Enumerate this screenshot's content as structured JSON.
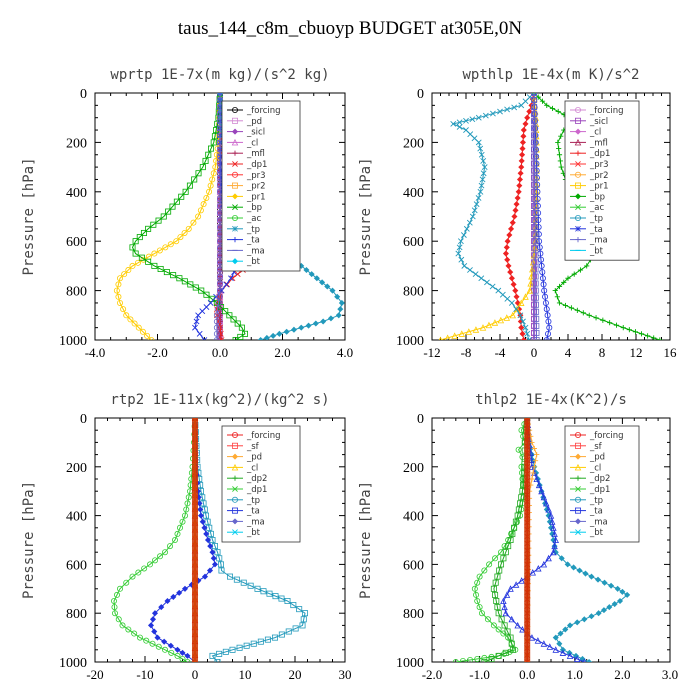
{
  "title": "taus_144_c8m_cbuoyp  BUDGET at305E,0N",
  "colors": {
    "forcing": "#000000",
    "pd": "#d38ad3",
    "sicl": "#9944bb",
    "cl": "#cc66cc",
    "mfl": "#aa2255",
    "dp1": "#ee2222",
    "pr3": "#ff3333",
    "pr2": "#ffaa33",
    "pr1": "#ffcc00",
    "bp": "#00aa00",
    "ac": "#33cc33",
    "tp": "#2299bb",
    "ta": "#2233dd",
    "ma": "#6666cc",
    "bt": "#00ccee",
    "sf": "#ff4444",
    "dp2": "#22aa22"
  },
  "chart_data": [
    {
      "type": "line",
      "title": "wprtp  1E-7x(m kg)/(s^2 kg)",
      "ylabel": "Pressure [hPa]",
      "xlim": [
        -4,
        4
      ],
      "ylim": [
        1000,
        0
      ],
      "xticks": [
        "-4.0",
        "-2.0",
        "0.0",
        "2.0",
        "4.0"
      ],
      "yticks": [
        "0",
        "200",
        "400",
        "600",
        "800",
        "1000"
      ],
      "legend": [
        "_forcing",
        "_pd",
        "_sicl",
        "_cl",
        "_mfl",
        "_dp1",
        "_pr3",
        "_pr2",
        "_pr1",
        "_bp",
        "_ac",
        "_tp",
        "_ta",
        "_ma",
        "_bt"
      ],
      "series": [
        {
          "name": "_forcing",
          "color": "forcing",
          "p": [
            0,
            100,
            200,
            300,
            400,
            500,
            600,
            700,
            800,
            900,
            1000
          ],
          "x": [
            0,
            0,
            0,
            0,
            0,
            0,
            0,
            0,
            0,
            0,
            0
          ]
        },
        {
          "name": "_pd",
          "color": "pd",
          "p": [
            0,
            200,
            400,
            600,
            800,
            900,
            1000
          ],
          "x": [
            0,
            0,
            0,
            0,
            0,
            0,
            0
          ]
        },
        {
          "name": "_sicl",
          "color": "sicl",
          "p": [
            0,
            200,
            400,
            600,
            800,
            900,
            1000
          ],
          "x": [
            0,
            0,
            0,
            0,
            0,
            0,
            0
          ]
        },
        {
          "name": "_cl",
          "color": "cl",
          "p": [
            0,
            200,
            400,
            600,
            800,
            900,
            1000
          ],
          "x": [
            0,
            0,
            0,
            0,
            0,
            0,
            0
          ]
        },
        {
          "name": "_mfl",
          "color": "mfl",
          "p": [
            0,
            200,
            400,
            600,
            800,
            900,
            1000
          ],
          "x": [
            0,
            0,
            0,
            0,
            0,
            0,
            0
          ]
        },
        {
          "name": "_dp1",
          "color": "dp1",
          "p": [
            0,
            100,
            200,
            300,
            400,
            500,
            550,
            600,
            650,
            700,
            750,
            800,
            850,
            900,
            950,
            1000
          ],
          "x": [
            0,
            0.02,
            0.05,
            0.15,
            0.3,
            0.55,
            0.75,
            0.95,
            1.1,
            0.9,
            0.4,
            0.05,
            -0.1,
            -0.1,
            0,
            0.05
          ]
        },
        {
          "name": "_pr1",
          "color": "pr1",
          "p": [
            0,
            100,
            200,
            300,
            400,
            500,
            550,
            600,
            650,
            700,
            750,
            800,
            850,
            900,
            950,
            1000
          ],
          "x": [
            0,
            -0.02,
            -0.05,
            -0.15,
            -0.35,
            -0.7,
            -1.0,
            -1.4,
            -2.1,
            -2.8,
            -3.2,
            -3.3,
            -3.2,
            -3.0,
            -2.6,
            -2.2
          ]
        },
        {
          "name": "_bp",
          "color": "bp",
          "p": [
            0,
            100,
            200,
            300,
            400,
            500,
            550,
            600,
            625,
            650,
            700,
            750,
            800,
            850,
            900,
            950,
            975,
            1000
          ],
          "x": [
            0,
            -0.05,
            -0.2,
            -0.55,
            -1.1,
            -1.8,
            -2.3,
            -2.7,
            -2.8,
            -2.7,
            -2.1,
            -1.3,
            -0.6,
            -0.1,
            0.3,
            0.7,
            0.8,
            0.5
          ]
        },
        {
          "name": "_tp",
          "color": "tp",
          "p": [
            0,
            100,
            200,
            300,
            400,
            500,
            550,
            600,
            650,
            700,
            750,
            800,
            850,
            900,
            925,
            950,
            975,
            1000
          ],
          "x": [
            0,
            0.02,
            0.1,
            0.25,
            0.5,
            0.9,
            1.2,
            1.6,
            2.1,
            2.6,
            3.1,
            3.6,
            3.9,
            3.8,
            3.3,
            2.6,
            1.9,
            1.3
          ]
        },
        {
          "name": "_ta",
          "color": "ta",
          "p": [
            0,
            200,
            400,
            500,
            550,
            600,
            650,
            700,
            750,
            800,
            850,
            900,
            950,
            1000
          ],
          "x": [
            0,
            0,
            0.05,
            0.15,
            0.3,
            0.45,
            0.6,
            0.55,
            0.35,
            0.05,
            -0.3,
            -0.7,
            -0.8,
            -0.5
          ]
        },
        {
          "name": "_ma",
          "color": "ma",
          "p": [
            0,
            400,
            800,
            900,
            1000
          ],
          "x": [
            0,
            0,
            0,
            -0.1,
            -0.1
          ]
        }
      ]
    },
    {
      "type": "line",
      "title": "wpthlp  1E-4x(m K)/s^2",
      "ylabel": "Pressure [hPa]",
      "xlim": [
        -12,
        16
      ],
      "ylim": [
        1000,
        0
      ],
      "xticks": [
        "-12",
        "-8",
        "-4",
        "0",
        "4",
        "8",
        "12",
        "16"
      ],
      "yticks": [
        "0",
        "200",
        "400",
        "600",
        "800",
        "1000"
      ],
      "legend": [
        "_forcing",
        "_sicl",
        "_cl",
        "_mfl",
        "_dp1",
        "_pr3",
        "_pr2",
        "_pr1",
        "_bp",
        "_ac",
        "_tp",
        "_ta",
        "_ma",
        "_bt"
      ],
      "series": [
        {
          "name": "_forcing",
          "color": "pd",
          "p": [
            0,
            200,
            400,
            600,
            800,
            1000
          ],
          "x": [
            0,
            0,
            0,
            0,
            0,
            0
          ]
        },
        {
          "name": "_sicl",
          "color": "sicl",
          "p": [
            0,
            200,
            400,
            600,
            800,
            1000
          ],
          "x": [
            0,
            0,
            0,
            0,
            0,
            0
          ]
        },
        {
          "name": "_dp1",
          "color": "dp1",
          "p": [
            0,
            50,
            100,
            150,
            200,
            300,
            400,
            500,
            600,
            650,
            700,
            800,
            900,
            950,
            1000
          ],
          "x": [
            0,
            -0.3,
            -0.8,
            -1.2,
            -1.3,
            -1.5,
            -1.8,
            -2.3,
            -3.1,
            -3.3,
            -3.0,
            -2.2,
            -1.6,
            -1.5,
            -1.2
          ]
        },
        {
          "name": "_pr1",
          "color": "pr1",
          "p": [
            0,
            100,
            200,
            400,
            600,
            800,
            900,
            950,
            1000
          ],
          "x": [
            0,
            0.2,
            0.3,
            0.3,
            0.2,
            -0.5,
            -2.5,
            -6,
            -11
          ]
        },
        {
          "name": "_bp",
          "color": "bp",
          "p": [
            0,
            50,
            100,
            125,
            150,
            200,
            300,
            400,
            500,
            550,
            600,
            650,
            700,
            750,
            800,
            850,
            900,
            950,
            1000
          ],
          "x": [
            0,
            1.5,
            4.2,
            4.5,
            3.5,
            2.8,
            3.2,
            4.2,
            5.6,
            6.3,
            6.9,
            7.1,
            6.2,
            4.0,
            2.5,
            3.0,
            6.5,
            10.5,
            14.8
          ]
        },
        {
          "name": "_tp",
          "color": "tp",
          "p": [
            0,
            50,
            100,
            125,
            150,
            200,
            300,
            400,
            500,
            550,
            600,
            650,
            700,
            750,
            800,
            850,
            900,
            950,
            1000
          ],
          "x": [
            0,
            -1.5,
            -6.5,
            -9.5,
            -8.0,
            -6.5,
            -5.8,
            -6.3,
            -7.2,
            -7.9,
            -8.6,
            -8.9,
            -8.2,
            -6.2,
            -4.2,
            -2.6,
            -1.6,
            -1.0,
            -0.6
          ]
        },
        {
          "name": "_ta",
          "color": "ta",
          "p": [
            0,
            200,
            400,
            600,
            700,
            800,
            900,
            950,
            1000
          ],
          "x": [
            0,
            0.2,
            0.4,
            0.6,
            0.9,
            1.2,
            1.6,
            1.8,
            1.5
          ]
        },
        {
          "name": "_ma",
          "color": "ma",
          "p": [
            0,
            400,
            800,
            1000
          ],
          "x": [
            0,
            0.1,
            0.2,
            0.3
          ]
        }
      ]
    },
    {
      "type": "line",
      "title": "rtp2  1E-11x(kg^2)/(kg^2 s)",
      "ylabel": "Pressure [hPa]",
      "xlim": [
        -20,
        30
      ],
      "ylim": [
        1000,
        0
      ],
      "xticks": [
        "-20",
        "-10",
        "0",
        "10",
        "20",
        "30"
      ],
      "yticks": [
        "0",
        "200",
        "400",
        "600",
        "800",
        "1000"
      ],
      "legend": [
        "_forcing",
        "_sf",
        "_pd",
        "_cl",
        "_dp2",
        "_dp1",
        "_tp",
        "_ta",
        "_ma",
        "_bt"
      ],
      "series": [
        {
          "name": "_dp1",
          "color": "ac",
          "p": [
            0,
            100,
            200,
            300,
            400,
            500,
            550,
            600,
            650,
            700,
            750,
            800,
            850,
            900,
            950,
            975,
            1000
          ],
          "x": [
            0,
            -0.2,
            -0.5,
            -1.0,
            -2.0,
            -4.0,
            -6.0,
            -9.0,
            -12.5,
            -15.0,
            -16.2,
            -16.0,
            -14.5,
            -11.0,
            -6.0,
            -3.5,
            -1.5
          ]
        },
        {
          "name": "_tp",
          "color": "tp",
          "p": [
            0,
            200,
            300,
            400,
            500,
            550,
            600,
            625,
            650,
            700,
            750,
            800,
            850,
            900,
            950,
            975,
            1000
          ],
          "x": [
            0,
            0.5,
            1.2,
            2.2,
            3.5,
            4.5,
            5.2,
            5.3,
            7.0,
            12.5,
            18.5,
            22.0,
            21.5,
            16.0,
            7.5,
            3.5,
            4.5
          ]
        },
        {
          "name": "_ta",
          "color": "ta",
          "p": [
            0,
            200,
            300,
            400,
            500,
            550,
            600,
            650,
            700,
            750,
            800,
            850,
            900,
            950,
            975,
            1000
          ],
          "x": [
            0,
            0.2,
            0.6,
            1.2,
            2.6,
            3.5,
            4.0,
            2.0,
            -2.0,
            -5.5,
            -8.0,
            -8.8,
            -7.5,
            -3.5,
            -1.5,
            0
          ]
        },
        {
          "name": "_forcing",
          "color": "dp1",
          "p": [
            0,
            200,
            400,
            600,
            800,
            1000
          ],
          "x": [
            0,
            0,
            0,
            0,
            0,
            0
          ]
        },
        {
          "name": "_pd",
          "color": "pr2",
          "p": [
            0,
            200,
            400,
            600,
            800,
            1000
          ],
          "x": [
            0,
            0,
            0,
            0,
            0,
            0
          ]
        }
      ]
    },
    {
      "type": "line",
      "title": "thlp2  1E-4x(K^2)/s",
      "ylabel": "Pressure [hPa]",
      "xlim": [
        -2,
        3
      ],
      "ylim": [
        1000,
        0
      ],
      "xticks": [
        "-2.0",
        "-1.0",
        "0.0",
        "1.0",
        "2.0",
        "3.0"
      ],
      "yticks": [
        "0",
        "200",
        "400",
        "600",
        "800",
        "1000"
      ],
      "legend": [
        "_forcing",
        "_sf",
        "_pd",
        "_cl",
        "_dp2",
        "_dp1",
        "_tp",
        "_ta",
        "_ma",
        "_bt"
      ],
      "series": [
        {
          "name": "_dp1",
          "color": "ac",
          "p": [
            0,
            50,
            100,
            130,
            160,
            200,
            250,
            300,
            400,
            500,
            550,
            600,
            650,
            700,
            750,
            800,
            850,
            900,
            950,
            975,
            1000
          ],
          "x": [
            0,
            -0.12,
            -0.05,
            -0.18,
            -0.1,
            -0.12,
            -0.1,
            -0.05,
            -0.15,
            -0.4,
            -0.55,
            -0.8,
            -1.0,
            -1.1,
            -1.05,
            -0.95,
            -0.7,
            -0.4,
            -0.25,
            -0.6,
            -1.5
          ]
        },
        {
          "name": "_dp2",
          "color": "dp2",
          "p": [
            0,
            100,
            200,
            300,
            400,
            500,
            600,
            700,
            800,
            900,
            950,
            1000
          ],
          "x": [
            0,
            -0.05,
            -0.05,
            -0.1,
            -0.2,
            -0.35,
            -0.55,
            -0.7,
            -0.6,
            -0.35,
            -0.3,
            -0.9
          ]
        },
        {
          "name": "_tp",
          "color": "tp",
          "p": [
            0,
            100,
            200,
            300,
            400,
            500,
            550,
            600,
            650,
            700,
            725,
            750,
            800,
            850,
            900,
            950,
            1000
          ],
          "x": [
            0,
            0.05,
            0.15,
            0.3,
            0.45,
            0.55,
            0.6,
            0.85,
            1.35,
            1.9,
            2.1,
            1.95,
            1.5,
            0.9,
            0.6,
            0.75,
            1.3
          ]
        },
        {
          "name": "_ta",
          "color": "ta",
          "p": [
            0,
            200,
            300,
            400,
            500,
            550,
            600,
            650,
            700,
            750,
            800,
            850,
            900,
            950,
            1000
          ],
          "x": [
            0,
            0.1,
            0.3,
            0.5,
            0.6,
            0.55,
            0.35,
            0.0,
            -0.35,
            -0.5,
            -0.45,
            -0.2,
            0.1,
            0.6,
            1.2
          ]
        },
        {
          "name": "_pd",
          "color": "pr2",
          "p": [
            0,
            100,
            150,
            200,
            300,
            1000
          ],
          "x": [
            0,
            0.1,
            0.2,
            0.15,
            0.05,
            0
          ]
        },
        {
          "name": "_forcing",
          "color": "dp1",
          "p": [
            0,
            200,
            400,
            600,
            800,
            1000
          ],
          "x": [
            0,
            0,
            0,
            0,
            0,
            0
          ]
        }
      ]
    }
  ]
}
